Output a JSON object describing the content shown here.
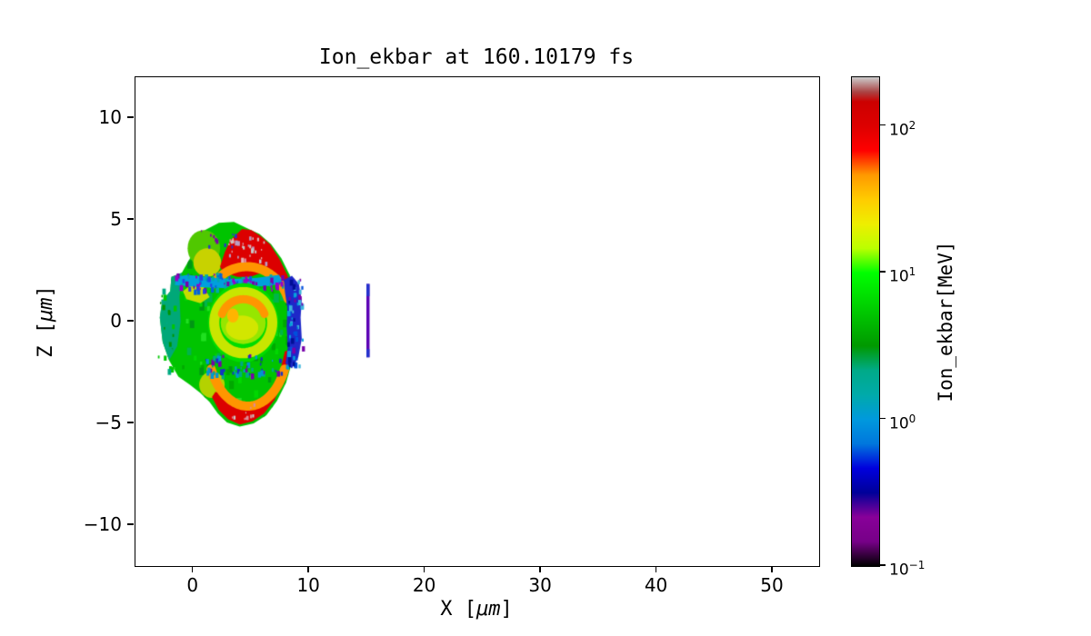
{
  "chart_data": {
    "type": "heatmap",
    "title": "Ion_ekbar at 160.10179 fs",
    "xlabel": {
      "prefix": "X [",
      "symbol": "μm",
      "suffix": "]"
    },
    "ylabel": {
      "prefix": "Z [",
      "symbol": "μm",
      "suffix": "]"
    },
    "xlim": [
      -5,
      54
    ],
    "ylim": [
      -12,
      12
    ],
    "grid": false,
    "xticks": [
      {
        "v": 0,
        "label": "0"
      },
      {
        "v": 10,
        "label": "10"
      },
      {
        "v": 20,
        "label": "20"
      },
      {
        "v": 30,
        "label": "30"
      },
      {
        "v": 40,
        "label": "40"
      },
      {
        "v": 50,
        "label": "50"
      }
    ],
    "yticks": [
      {
        "v": 10,
        "label": "10"
      },
      {
        "v": 5,
        "label": "5"
      },
      {
        "v": 0,
        "label": "0"
      },
      {
        "v": -5,
        "label": "−5"
      },
      {
        "v": -10,
        "label": "−10"
      }
    ],
    "colorbar": {
      "label": "Ion_ekbar[MeV]",
      "scale": "log",
      "vmin": 0.1,
      "vmax": 215,
      "colormap": "nipy_spectral",
      "ticks": [
        {
          "v": 100,
          "base": "10",
          "exp": "2"
        },
        {
          "v": 10,
          "base": "10",
          "exp": "1"
        },
        {
          "v": 1,
          "base": "10",
          "exp": "0"
        },
        {
          "v": 0.1,
          "base": "10",
          "exp": "−1"
        }
      ],
      "stops": [
        {
          "t": 0.0,
          "c": "#000000"
        },
        {
          "t": 0.05,
          "c": "#770088"
        },
        {
          "t": 0.1,
          "c": "#880099"
        },
        {
          "t": 0.15,
          "c": "#000099"
        },
        {
          "t": 0.2,
          "c": "#0000dd"
        },
        {
          "t": 0.25,
          "c": "#0077dd"
        },
        {
          "t": 0.3,
          "c": "#0099dd"
        },
        {
          "t": 0.35,
          "c": "#00aaaa"
        },
        {
          "t": 0.4,
          "c": "#00aa88"
        },
        {
          "t": 0.45,
          "c": "#009900"
        },
        {
          "t": 0.5,
          "c": "#00bb00"
        },
        {
          "t": 0.55,
          "c": "#00dd00"
        },
        {
          "t": 0.6,
          "c": "#00ff00"
        },
        {
          "t": 0.65,
          "c": "#bbff00"
        },
        {
          "t": 0.7,
          "c": "#eeee00"
        },
        {
          "t": 0.75,
          "c": "#ffcc00"
        },
        {
          "t": 0.8,
          "c": "#ff9900"
        },
        {
          "t": 0.85,
          "c": "#ff0000"
        },
        {
          "t": 0.9,
          "c": "#dd0000"
        },
        {
          "t": 0.95,
          "c": "#cc0000"
        },
        {
          "t": 0.97,
          "c": "#aa4444"
        },
        {
          "t": 1.0,
          "c": "#cccccc"
        }
      ]
    },
    "features": [
      {
        "type": "polygon",
        "name": "blob-base",
        "color": "#00c400",
        "pts": [
          [
            -2.9,
            0.2
          ],
          [
            -2.7,
            1.0
          ],
          [
            -2.0,
            1.5
          ],
          [
            -1.9,
            2.2
          ],
          [
            -1.0,
            2.4
          ],
          [
            -0.3,
            3.1
          ],
          [
            0.2,
            4.0
          ],
          [
            1.0,
            4.5
          ],
          [
            2.2,
            4.85
          ],
          [
            3.5,
            4.9
          ],
          [
            4.6,
            4.6
          ],
          [
            5.7,
            4.3
          ],
          [
            6.7,
            3.8
          ],
          [
            7.6,
            3.1
          ],
          [
            8.3,
            2.3
          ],
          [
            8.8,
            1.3
          ],
          [
            9.05,
            0.2
          ],
          [
            8.9,
            -1.0
          ],
          [
            8.45,
            -2.1
          ],
          [
            8.0,
            -3.0
          ],
          [
            7.2,
            -3.9
          ],
          [
            6.3,
            -4.6
          ],
          [
            5.2,
            -5.0
          ],
          [
            4.0,
            -5.15
          ],
          [
            2.9,
            -4.95
          ],
          [
            2.1,
            -4.5
          ],
          [
            1.4,
            -3.95
          ],
          [
            0.6,
            -3.5
          ],
          [
            -0.3,
            -3.1
          ],
          [
            -1.3,
            -2.7
          ],
          [
            -2.1,
            -1.9
          ],
          [
            -2.65,
            -1.0
          ]
        ]
      },
      {
        "type": "speckle",
        "name": "green-texture",
        "clip": true,
        "x0": -2.6,
        "z0": -4.6,
        "x1": 8.6,
        "z1": 4.4,
        "n": 170,
        "size": 0.3,
        "colors": [
          "#00a800",
          "#00d800",
          "#009614",
          "#20e020",
          "#00b44b"
        ]
      },
      {
        "type": "polygon",
        "name": "left-teal-fringe",
        "color": "#00a878",
        "pts": [
          [
            -2.9,
            0.2
          ],
          [
            -2.7,
            1.0
          ],
          [
            -2.0,
            1.5
          ],
          [
            -1.9,
            2.2
          ],
          [
            -1.0,
            2.4
          ],
          [
            -1.2,
            1.2
          ],
          [
            -1.1,
            0.0
          ],
          [
            -1.4,
            -1.2
          ],
          [
            -2.1,
            -1.9
          ],
          [
            -2.65,
            -1.0
          ]
        ]
      },
      {
        "type": "ellipse",
        "name": "topleft-green-patch",
        "color": "#50c800",
        "cx": 0.9,
        "cy": 3.6,
        "rx": 1.4,
        "ry": 0.9
      },
      {
        "type": "ellipse",
        "name": "topleft-yellow-patch",
        "color": "#c8d200",
        "cx": 1.2,
        "cy": 2.9,
        "rx": 1.2,
        "ry": 0.7
      },
      {
        "type": "polygon",
        "name": "left-yellow-streak",
        "color": "#c8dc00",
        "pts": [
          [
            -0.6,
            1.1
          ],
          [
            0.6,
            0.9
          ],
          [
            1.4,
            1.2
          ],
          [
            0.9,
            1.7
          ],
          [
            -0.2,
            1.8
          ],
          [
            -0.9,
            1.5
          ]
        ]
      },
      {
        "type": "ellipse",
        "name": "bottomleft-yellow-patch",
        "color": "#b4d200",
        "cx": 1.6,
        "cy": -3.1,
        "rx": 1.1,
        "ry": 0.65
      },
      {
        "type": "polygon",
        "name": "top-red-crescent",
        "color": "#dc0000",
        "pts": [
          [
            2.3,
            2.7
          ],
          [
            2.7,
            3.4
          ],
          [
            3.2,
            4.0
          ],
          [
            4.2,
            4.55
          ],
          [
            5.0,
            4.5
          ],
          [
            5.8,
            4.2
          ],
          [
            6.6,
            3.8
          ],
          [
            7.4,
            3.1
          ],
          [
            8.1,
            2.3
          ],
          [
            8.65,
            1.3
          ],
          [
            8.9,
            0.3
          ],
          [
            8.3,
            0.3
          ],
          [
            8.0,
            1.1
          ],
          [
            7.5,
            1.9
          ],
          [
            6.8,
            2.55
          ],
          [
            5.9,
            2.4
          ],
          [
            4.9,
            2.2
          ],
          [
            3.8,
            2.2
          ],
          [
            3.0,
            2.35
          ],
          [
            2.5,
            2.5
          ]
        ]
      },
      {
        "type": "arc",
        "name": "top-orange-arc",
        "color": "#ff9600",
        "cx": 4.6,
        "cy": 0.3,
        "rx": 3.8,
        "ry": 2.4,
        "a0": 20,
        "a1": 140,
        "w": 0.45
      },
      {
        "type": "polygon",
        "name": "bottom-red-crescent",
        "color": "#dc0000",
        "pts": [
          [
            1.6,
            -3.7
          ],
          [
            2.2,
            -4.35
          ],
          [
            3.0,
            -4.8
          ],
          [
            4.0,
            -5.05
          ],
          [
            5.1,
            -4.9
          ],
          [
            6.1,
            -4.5
          ],
          [
            7.0,
            -3.85
          ],
          [
            7.7,
            -3.0
          ],
          [
            8.2,
            -2.1
          ],
          [
            8.45,
            -1.4
          ],
          [
            7.9,
            -1.45
          ],
          [
            7.6,
            -2.15
          ],
          [
            7.15,
            -2.9
          ],
          [
            6.5,
            -3.55
          ],
          [
            5.65,
            -4.05
          ],
          [
            4.7,
            -4.3
          ],
          [
            3.75,
            -4.2
          ],
          [
            2.9,
            -3.9
          ],
          [
            2.2,
            -3.5
          ],
          [
            1.9,
            -3.45
          ]
        ]
      },
      {
        "type": "arc",
        "name": "bottom-orange-arc",
        "color": "#ff9600",
        "cx": 4.7,
        "cy": -1.0,
        "rx": 3.5,
        "ry": 3.15,
        "a0": 205,
        "a1": 335,
        "w": 0.45
      },
      {
        "type": "polygon",
        "name": "cyan-band",
        "color": "#00a0dc",
        "pts": [
          [
            -1.6,
            1.8
          ],
          [
            0.5,
            1.7
          ],
          [
            2.5,
            1.65
          ],
          [
            4.5,
            1.7
          ],
          [
            6.5,
            1.75
          ],
          [
            7.7,
            1.9
          ],
          [
            7.4,
            2.3
          ],
          [
            5.5,
            2.15
          ],
          [
            3.5,
            2.1
          ],
          [
            1.5,
            2.15
          ],
          [
            -0.5,
            2.3
          ],
          [
            -1.5,
            2.2
          ]
        ]
      },
      {
        "type": "speckle",
        "name": "cyan-band-speckles",
        "x0": -1.6,
        "z0": 1.55,
        "x1": 7.8,
        "z1": 2.4,
        "n": 85,
        "size": 0.2,
        "colors": [
          "#0064dc",
          "#7800aa",
          "#00aaaa",
          "#2840e6",
          "#9600c8"
        ]
      },
      {
        "type": "ellipse",
        "name": "core-outer",
        "color": "#00dc00",
        "cx": 4.3,
        "cy": -0.05,
        "rx": 3.05,
        "ry": 1.95
      },
      {
        "type": "arc",
        "name": "core-yellow-ring",
        "color": "#c8e600",
        "cx": 4.3,
        "cy": -0.05,
        "rx": 2.5,
        "ry": 1.5,
        "a0": 0,
        "a1": 360,
        "w": 0.5
      },
      {
        "type": "ellipse",
        "name": "core-inner",
        "color": "#96e600",
        "cx": 4.3,
        "cy": -0.05,
        "rx": 1.95,
        "ry": 1.05
      },
      {
        "type": "arc",
        "name": "core-orange-arc",
        "color": "#ff9600",
        "cx": 4.3,
        "cy": 0.0,
        "rx": 1.95,
        "ry": 1.1,
        "a0": 20,
        "a1": 160,
        "w": 0.4
      },
      {
        "type": "ellipse",
        "name": "core-yellow-center",
        "color": "#d2e600",
        "cx": 4.2,
        "cy": -0.3,
        "rx": 1.4,
        "ry": 0.6
      },
      {
        "type": "ellipse",
        "name": "core-orange-dot",
        "color": "#ffb400",
        "cx": 3.4,
        "cy": 0.3,
        "rx": 0.5,
        "ry": 0.35
      },
      {
        "type": "polygon",
        "name": "blue-band",
        "color": "#1e28c8",
        "pts": [
          [
            7.8,
            2.05
          ],
          [
            8.5,
            2.25
          ],
          [
            9.1,
            1.85
          ],
          [
            9.35,
            1.05
          ],
          [
            9.25,
            0.2
          ],
          [
            9.35,
            -0.85
          ],
          [
            9.05,
            -1.75
          ],
          [
            8.5,
            -2.3
          ],
          [
            7.95,
            -2.05
          ],
          [
            8.15,
            -1.25
          ],
          [
            8.05,
            -0.3
          ],
          [
            8.1,
            0.7
          ],
          [
            7.9,
            1.45
          ]
        ]
      },
      {
        "type": "speckle",
        "name": "blue-band-speckles",
        "x0": 7.9,
        "z0": -2.3,
        "x1": 9.4,
        "z1": 2.2,
        "n": 55,
        "size": 0.2,
        "colors": [
          "#7800aa",
          "#00a0dc",
          "#0050dc",
          "#000f96",
          "#3cb4dc"
        ]
      },
      {
        "type": "speckle",
        "name": "below-core-speckles",
        "x0": 0.9,
        "z0": -2.6,
        "x1": 7.6,
        "z1": -1.6,
        "n": 55,
        "size": 0.2,
        "colors": [
          "#1432c8",
          "#7800aa",
          "#0096d2",
          "#00aa82"
        ]
      },
      {
        "type": "speckle",
        "name": "top-crescent-gray-speckles",
        "x0": 3.0,
        "z0": 2.9,
        "x1": 6.3,
        "z1": 4.2,
        "n": 30,
        "size": 0.17,
        "colors": [
          "#c8c8c8",
          "#dc8c96",
          "#b99cc3",
          "#e6b4b4"
        ]
      },
      {
        "type": "speckle",
        "name": "bottom-crescent-gray-speckles",
        "x0": 3.1,
        "z0": -4.75,
        "x1": 5.3,
        "z1": -4.0,
        "n": 10,
        "size": 0.15,
        "colors": [
          "#c8c8c8",
          "#dc8c96"
        ]
      },
      {
        "type": "speckle",
        "name": "top-edge-purple-speckles",
        "x0": 0.2,
        "z0": 3.7,
        "x1": 3.6,
        "z1": 4.7,
        "n": 10,
        "size": 0.16,
        "colors": [
          "#7800aa",
          "#2833cc"
        ]
      },
      {
        "type": "speckle",
        "name": "left-fringe-speckles",
        "x0": -3.15,
        "z0": -2.4,
        "x1": -1.7,
        "z1": 1.9,
        "n": 22,
        "size": 0.2,
        "colors": [
          "#00aa82",
          "#009600",
          "#00c800"
        ]
      },
      {
        "type": "rect",
        "name": "detached-line",
        "color": "#5a00b4",
        "x0": 14.93,
        "z0": -1.75,
        "x1": 15.2,
        "z1": 1.85
      },
      {
        "type": "rect",
        "name": "detached-line-top-cap",
        "color": "#2330cc",
        "x0": 14.93,
        "z0": 1.25,
        "x1": 15.2,
        "z1": 1.85
      },
      {
        "type": "rect",
        "name": "detached-line-bottom-cap",
        "color": "#2330cc",
        "x0": 14.93,
        "z0": -1.75,
        "x1": 15.2,
        "z1": -1.35
      }
    ]
  }
}
